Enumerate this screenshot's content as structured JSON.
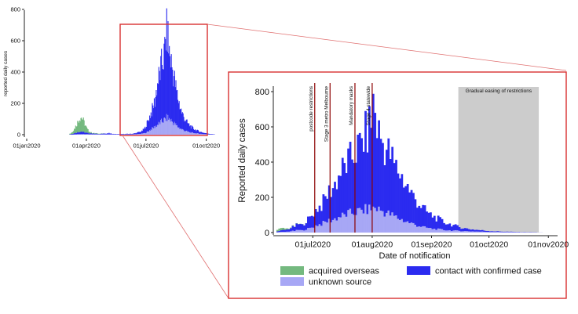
{
  "colors": {
    "overseas": "#74b97f",
    "contact": "#2b2bf0",
    "unknown": "#a7a7f5",
    "event_line": "#8b0000",
    "easing_band": "#cccccc",
    "highlight_box": "#d93030"
  },
  "chart_data": [
    {
      "id": "overview",
      "type": "bar",
      "stacked": true,
      "title": "",
      "xlabel": "",
      "ylabel": "reported daily cases",
      "ylim": [
        0,
        800
      ],
      "yticks": [
        "0",
        "200",
        "400",
        "600",
        "800"
      ],
      "xticks": [
        {
          "label": "01jan2020",
          "day": 0
        },
        {
          "label": "01apr2020",
          "day": 91
        },
        {
          "label": "01jul2020",
          "day": 182
        },
        {
          "label": "01oct2020",
          "day": 274
        }
      ],
      "xlim_days": [
        0,
        290
      ],
      "series": [
        {
          "name": "acquired overseas",
          "color_key": "overseas",
          "points": [
            [
              66,
              5
            ],
            [
              68,
              10
            ],
            [
              70,
              18
            ],
            [
              72,
              28
            ],
            [
              74,
              42
            ],
            [
              76,
              58
            ],
            [
              78,
              72
            ],
            [
              80,
              86
            ],
            [
              82,
              95
            ],
            [
              84,
              90
            ],
            [
              86,
              75
            ],
            [
              88,
              55
            ],
            [
              90,
              38
            ],
            [
              92,
              24
            ],
            [
              94,
              14
            ],
            [
              97,
              6
            ],
            [
              100,
              3
            ],
            [
              110,
              2
            ],
            [
              120,
              0
            ]
          ]
        },
        {
          "name": "contact with confirmed case",
          "color_key": "contact",
          "points": [
            [
              66,
              2
            ],
            [
              72,
              8
            ],
            [
              78,
              14
            ],
            [
              82,
              18
            ],
            [
              86,
              14
            ],
            [
              92,
              8
            ],
            [
              98,
              6
            ],
            [
              104,
              4
            ],
            [
              110,
              3
            ],
            [
              120,
              5
            ],
            [
              125,
              8
            ],
            [
              130,
              3
            ],
            [
              140,
              2
            ],
            [
              150,
              3
            ],
            [
              160,
              4
            ],
            [
              165,
              6
            ],
            [
              170,
              12
            ],
            [
              175,
              15
            ],
            [
              180,
              35
            ],
            [
              185,
              75
            ],
            [
              190,
              115
            ],
            [
              195,
              170
            ],
            [
              198,
              250
            ],
            [
              200,
              290
            ],
            [
              203,
              330
            ],
            [
              206,
              390
            ],
            [
              209,
              420
            ],
            [
              212,
              540
            ],
            [
              214,
              570
            ],
            [
              216,
              470
            ],
            [
              218,
              420
            ],
            [
              221,
              360
            ],
            [
              224,
              310
            ],
            [
              227,
              240
            ],
            [
              230,
              190
            ],
            [
              233,
              150
            ],
            [
              236,
              110
            ],
            [
              240,
              80
            ],
            [
              245,
              55
            ],
            [
              250,
              38
            ],
            [
              255,
              26
            ],
            [
              260,
              18
            ],
            [
              265,
              12
            ],
            [
              270,
              8
            ],
            [
              275,
              5
            ],
            [
              280,
              3
            ],
            [
              285,
              2
            ]
          ]
        },
        {
          "name": "unknown source",
          "color_key": "unknown",
          "points": [
            [
              66,
              0
            ],
            [
              80,
              4
            ],
            [
              90,
              3
            ],
            [
              120,
              2
            ],
            [
              160,
              2
            ],
            [
              170,
              4
            ],
            [
              180,
              10
            ],
            [
              185,
              22
            ],
            [
              190,
              38
            ],
            [
              195,
              52
            ],
            [
              200,
              68
            ],
            [
              205,
              85
            ],
            [
              210,
              98
            ],
            [
              214,
              112
            ],
            [
              218,
              100
            ],
            [
              222,
              85
            ],
            [
              226,
              68
            ],
            [
              230,
              52
            ],
            [
              235,
              38
            ],
            [
              240,
              28
            ],
            [
              245,
              20
            ],
            [
              250,
              14
            ],
            [
              260,
              8
            ],
            [
              270,
              4
            ],
            [
              280,
              2
            ],
            [
              285,
              1
            ]
          ]
        }
      ]
    },
    {
      "id": "zoom",
      "type": "bar",
      "stacked": true,
      "title": "",
      "xlabel": "Date of notification",
      "ylabel": "Reported daily cases",
      "ylim": [
        0,
        800
      ],
      "yticks": [
        "0",
        "200",
        "400",
        "600",
        "800"
      ],
      "xticks": [
        {
          "label": "01jul2020",
          "day": 182
        },
        {
          "label": "01aug2020",
          "day": 213
        },
        {
          "label": "01sep2020",
          "day": 244
        },
        {
          "label": "01oct2020",
          "day": 274
        },
        {
          "label": "01nov2020",
          "day": 305
        }
      ],
      "xlim_days": [
        163,
        309
      ],
      "series": [
        {
          "name": "acquired overseas",
          "color_key": "overseas",
          "points": [
            [
              164,
              12
            ],
            [
              166,
              10
            ],
            [
              168,
              6
            ],
            [
              170,
              3
            ],
            [
              175,
              1
            ],
            [
              180,
              0
            ]
          ]
        },
        {
          "name": "contact with confirmed case",
          "color_key": "contact",
          "points": [
            [
              164,
              6
            ],
            [
              166,
              10
            ],
            [
              168,
              12
            ],
            [
              170,
              20
            ],
            [
              172,
              25
            ],
            [
              174,
              35
            ],
            [
              176,
              30
            ],
            [
              178,
              50
            ],
            [
              180,
              60
            ],
            [
              182,
              80
            ],
            [
              184,
              100
            ],
            [
              186,
              110
            ],
            [
              188,
              140
            ],
            [
              190,
              170
            ],
            [
              192,
              190
            ],
            [
              194,
              220
            ],
            [
              196,
              260
            ],
            [
              198,
              280
            ],
            [
              200,
              300
            ],
            [
              202,
              330
            ],
            [
              204,
              360
            ],
            [
              206,
              380
            ],
            [
              208,
              420
            ],
            [
              210,
              450
            ],
            [
              212,
              520
            ],
            [
              213,
              620
            ],
            [
              214,
              560
            ],
            [
              215,
              480
            ],
            [
              216,
              450
            ],
            [
              218,
              400
            ],
            [
              220,
              370
            ],
            [
              222,
              350
            ],
            [
              224,
              300
            ],
            [
              226,
              280
            ],
            [
              228,
              250
            ],
            [
              230,
              220
            ],
            [
              232,
              190
            ],
            [
              234,
              160
            ],
            [
              236,
              140
            ],
            [
              238,
              120
            ],
            [
              240,
              100
            ],
            [
              242,
              85
            ],
            [
              244,
              75
            ],
            [
              246,
              65
            ],
            [
              248,
              55
            ],
            [
              250,
              45
            ],
            [
              252,
              40
            ],
            [
              254,
              35
            ],
            [
              256,
              28
            ],
            [
              258,
              22
            ],
            [
              260,
              18
            ],
            [
              264,
              12
            ],
            [
              268,
              9
            ],
            [
              272,
              6
            ],
            [
              276,
              4
            ],
            [
              280,
              3
            ],
            [
              285,
              2
            ],
            [
              290,
              1
            ],
            [
              296,
              1
            ],
            [
              300,
              0
            ]
          ]
        },
        {
          "name": "unknown source",
          "color_key": "unknown",
          "points": [
            [
              164,
              3
            ],
            [
              166,
              4
            ],
            [
              168,
              5
            ],
            [
              170,
              8
            ],
            [
              172,
              10
            ],
            [
              174,
              15
            ],
            [
              176,
              12
            ],
            [
              178,
              20
            ],
            [
              180,
              25
            ],
            [
              182,
              35
            ],
            [
              184,
              45
            ],
            [
              186,
              50
            ],
            [
              188,
              60
            ],
            [
              190,
              70
            ],
            [
              192,
              75
            ],
            [
              194,
              85
            ],
            [
              196,
              95
            ],
            [
              198,
              100
            ],
            [
              200,
              110
            ],
            [
              202,
              115
            ],
            [
              204,
              120
            ],
            [
              206,
              125
            ],
            [
              208,
              130
            ],
            [
              210,
              135
            ],
            [
              212,
              140
            ],
            [
              214,
              145
            ],
            [
              216,
              135
            ],
            [
              218,
              125
            ],
            [
              220,
              115
            ],
            [
              222,
              105
            ],
            [
              224,
              95
            ],
            [
              226,
              85
            ],
            [
              228,
              75
            ],
            [
              230,
              65
            ],
            [
              232,
              58
            ],
            [
              234,
              50
            ],
            [
              236,
              42
            ],
            [
              238,
              36
            ],
            [
              240,
              30
            ],
            [
              242,
              26
            ],
            [
              244,
              22
            ],
            [
              246,
              20
            ],
            [
              248,
              18
            ],
            [
              250,
              15
            ],
            [
              254,
              12
            ],
            [
              258,
              10
            ],
            [
              262,
              8
            ],
            [
              268,
              6
            ],
            [
              274,
              4
            ],
            [
              280,
              3
            ],
            [
              290,
              2
            ],
            [
              300,
              1
            ]
          ]
        }
      ],
      "events": [
        {
          "label": "postcode restrictions",
          "day": 183
        },
        {
          "label": "Stage 3 metro Melbourne",
          "day": 191
        },
        {
          "label": "Mandatory masks",
          "day": 204
        },
        {
          "label": "Stage 4 statewide",
          "day": 213
        }
      ],
      "easing_band": {
        "label": "Gradual easing of restrictions",
        "from_day": 258,
        "to_day": 300
      }
    }
  ],
  "legend": [
    {
      "label": "acquired overseas",
      "color_key": "overseas"
    },
    {
      "label": "contact with confirmed case",
      "color_key": "contact"
    },
    {
      "label": "unknown source",
      "color_key": "unknown"
    }
  ]
}
